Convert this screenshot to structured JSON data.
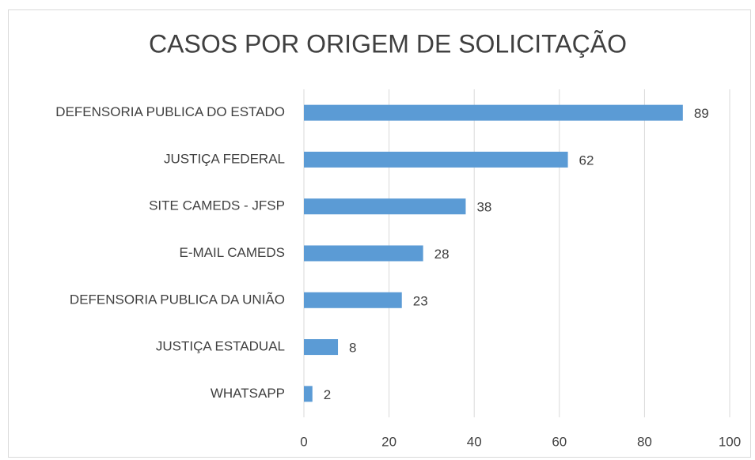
{
  "chart_data": {
    "type": "barh",
    "title": "CASOS POR ORIGEM DE SOLICITAÇÃO",
    "categories": [
      "DEFENSORIA PUBLICA DO ESTADO",
      "JUSTIÇA FEDERAL",
      "SITE CAMEDS - JFSP",
      "E-MAIL CAMEDS",
      "DEFENSORIA PUBLICA DA UNIÃO",
      "JUSTIÇA ESTADUAL",
      "WHATSAPP"
    ],
    "values": [
      89,
      62,
      38,
      28,
      23,
      8,
      2
    ],
    "color": "#5b9bd5",
    "xlim": [
      0,
      100
    ],
    "xticks": [
      0,
      20,
      40,
      60,
      80,
      100
    ],
    "grid": true
  }
}
